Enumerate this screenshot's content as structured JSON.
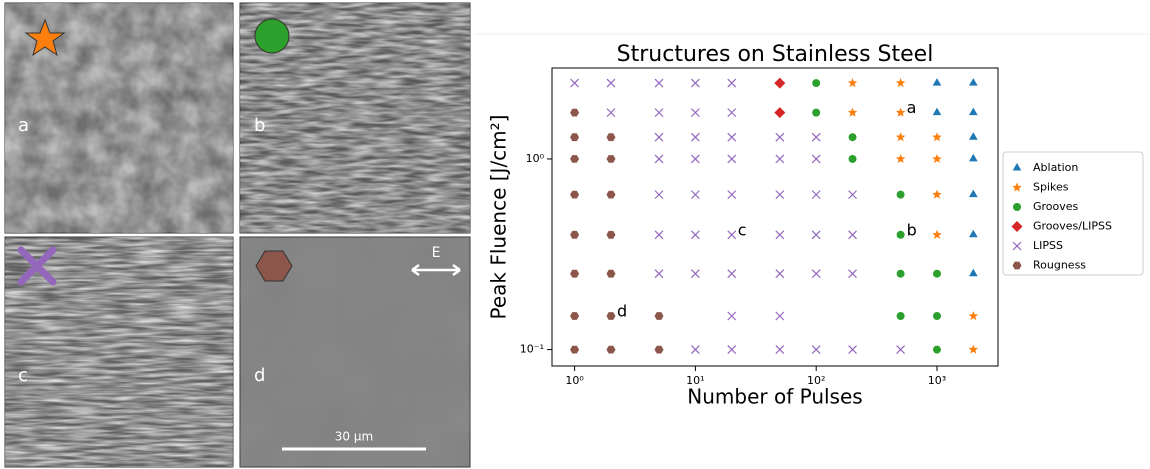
{
  "panels": [
    {
      "label": "a"
    },
    {
      "label": "b"
    },
    {
      "label": "c"
    },
    {
      "label": "d"
    }
  ],
  "scale_bar": "30 µm",
  "field_label": "E",
  "chart_data": {
    "type": "scatter",
    "title": "Structures on Stainless Steel",
    "x_label": "Number of Pulses",
    "y_label": "Peak Fluence [J/cm²]",
    "log_x": true,
    "log_y": true,
    "xlim": [
      0.65,
      3200
    ],
    "ylim": [
      0.082,
      3.0
    ],
    "xticks": [
      {
        "value": 1,
        "label": "10⁰"
      },
      {
        "value": 10,
        "label": "10¹"
      },
      {
        "value": 100,
        "label": "10²"
      },
      {
        "value": 1000,
        "label": "10³"
      }
    ],
    "yticks": [
      {
        "value": 0.1,
        "label": "10⁻¹"
      },
      {
        "value": 1,
        "label": "10⁰"
      }
    ],
    "series": [
      {
        "name": "Ablation",
        "color": "#1f77b4",
        "marker": "triangle",
        "x": [
          1000,
          2000,
          1000,
          2000,
          2000,
          2000,
          2000,
          2000,
          2000
        ],
        "y": [
          2.5,
          2.5,
          1.75,
          1.75,
          1.3,
          1.0,
          0.65,
          0.4,
          0.25
        ]
      },
      {
        "name": "Spikes",
        "color": "#ff7f0e",
        "marker": "star",
        "x": [
          200,
          500,
          200,
          500,
          500,
          1000,
          500,
          1000,
          1000,
          1000,
          2000,
          2000
        ],
        "y": [
          2.5,
          2.5,
          1.75,
          1.75,
          1.3,
          1.3,
          1.0,
          1.0,
          0.65,
          0.4,
          0.15,
          0.1
        ]
      },
      {
        "name": "Grooves",
        "color": "#2ca02c",
        "marker": "circle",
        "x": [
          100,
          100,
          200,
          200,
          500,
          500,
          500,
          1000,
          500,
          1000,
          1000
        ],
        "y": [
          2.5,
          1.75,
          1.3,
          1.0,
          0.65,
          0.4,
          0.25,
          0.25,
          0.15,
          0.15,
          0.1
        ]
      },
      {
        "name": "Grooves/LIPSS",
        "color": "#d62728",
        "marker": "diamond",
        "x": [
          50,
          50
        ],
        "y": [
          2.5,
          1.75
        ]
      },
      {
        "name": "LIPSS",
        "color": "#9467bd",
        "marker": "x",
        "x": [
          1,
          2,
          5,
          10,
          20,
          2,
          5,
          10,
          20,
          5,
          10,
          20,
          50,
          100,
          5,
          10,
          20,
          50,
          100,
          5,
          10,
          20,
          50,
          100,
          200,
          5,
          10,
          20,
          50,
          100,
          200,
          5,
          10,
          20,
          50,
          100,
          200,
          20,
          50,
          10,
          20,
          50,
          100,
          200,
          500
        ],
        "y": [
          2.5,
          2.5,
          2.5,
          2.5,
          2.5,
          1.75,
          1.75,
          1.75,
          1.75,
          1.3,
          1.3,
          1.3,
          1.3,
          1.3,
          1.0,
          1.0,
          1.0,
          1.0,
          1.0,
          0.65,
          0.65,
          0.65,
          0.65,
          0.65,
          0.65,
          0.4,
          0.4,
          0.4,
          0.4,
          0.4,
          0.4,
          0.25,
          0.25,
          0.25,
          0.25,
          0.25,
          0.25,
          0.15,
          0.15,
          0.1,
          0.1,
          0.1,
          0.1,
          0.1,
          0.1
        ]
      },
      {
        "name": "Rougness",
        "color": "#8c564b",
        "marker": "hexagon",
        "x": [
          1,
          1,
          2,
          1,
          2,
          1,
          2,
          1,
          2,
          1,
          2,
          1,
          2,
          5,
          1,
          2,
          5
        ],
        "y": [
          1.75,
          1.3,
          1.3,
          1.0,
          1.0,
          0.65,
          0.65,
          0.4,
          0.4,
          0.25,
          0.25,
          0.15,
          0.15,
          0.15,
          0.1,
          0.1,
          0.1
        ]
      }
    ],
    "annotations": [
      {
        "text": "a",
        "x": 500,
        "y": 1.75
      },
      {
        "text": "b",
        "x": 500,
        "y": 0.4
      },
      {
        "text": "c",
        "x": 20,
        "y": 0.4
      },
      {
        "text": "d",
        "x": 2,
        "y": 0.15
      }
    ]
  }
}
